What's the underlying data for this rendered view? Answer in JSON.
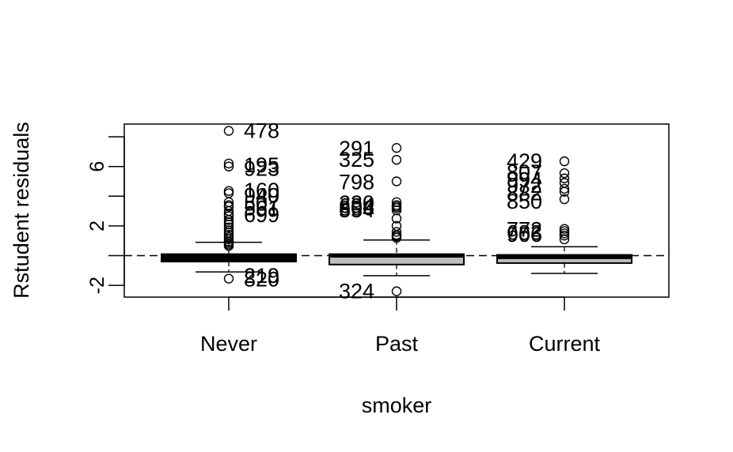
{
  "chart_data": {
    "type": "box",
    "xlabel": "smoker",
    "ylabel": "Rstudent residuals",
    "categories": [
      "Never",
      "Past",
      "Current"
    ],
    "ylim": [
      -2.9,
      8.7
    ],
    "yticks": [
      -2,
      0,
      2,
      4,
      6,
      8
    ],
    "ytick_labels": [
      "-2",
      "",
      "2",
      "",
      "6",
      ""
    ],
    "reference_line": {
      "y": 0,
      "style": "dashed"
    },
    "boxes": [
      {
        "category": "Never",
        "fill": "#000000",
        "median": 0.0,
        "q1": -0.4,
        "q3": 0.1,
        "whisker_low": -1.1,
        "whisker_high": 0.9,
        "outliers": [
          8.4,
          6.2,
          6.0,
          4.35,
          4.2,
          3.6,
          3.4,
          3.3,
          3.0,
          2.8,
          2.65,
          2.4,
          2.25,
          2.1,
          1.9,
          1.7,
          1.55,
          1.4,
          1.25,
          1.1,
          0.95,
          0.85,
          0.75,
          0.65,
          -1.55
        ],
        "labels": [
          {
            "text": "478",
            "y": 8.4
          },
          {
            "text": "195",
            "y": 6.1
          },
          {
            "text": "923",
            "y": 5.85
          },
          {
            "text": "160",
            "y": 4.4
          },
          {
            "text": "940",
            "y": 4.05
          },
          {
            "text": "507",
            "y": 3.5
          },
          {
            "text": "561",
            "y": 3.2
          },
          {
            "text": "699",
            "y": 2.75
          },
          {
            "text": "219",
            "y": -1.35
          },
          {
            "text": "820",
            "y": -1.6
          }
        ]
      },
      {
        "category": "Past",
        "fill": "#bebebe",
        "median": 0.0,
        "q1": -0.6,
        "q3": 0.1,
        "whisker_low": -1.35,
        "whisker_high": 1.05,
        "outliers": [
          7.25,
          6.45,
          5.0,
          3.6,
          3.4,
          3.3,
          3.2,
          3.05,
          2.5,
          2.0,
          1.6,
          1.4,
          1.3,
          1.2,
          -2.4
        ],
        "labels": [
          {
            "text": "291",
            "y": 7.2
          },
          {
            "text": "325",
            "y": 6.45
          },
          {
            "text": "798",
            "y": 4.95
          },
          {
            "text": "230",
            "y": 3.55
          },
          {
            "text": "694",
            "y": 3.35
          },
          {
            "text": "806",
            "y": 3.2
          },
          {
            "text": "554",
            "y": 3.05
          },
          {
            "text": "324",
            "y": -2.4
          }
        ]
      },
      {
        "category": "Current",
        "fill": "#bebebe",
        "median": -0.1,
        "q1": -0.5,
        "q3": 0.05,
        "whisker_low": -1.2,
        "whisker_high": 0.6,
        "outliers": [
          6.35,
          5.55,
          5.2,
          4.9,
          4.5,
          4.3,
          3.8,
          1.8,
          1.65,
          1.5,
          1.35,
          1.1
        ],
        "labels": [
          {
            "text": "429",
            "y": 6.35
          },
          {
            "text": "807",
            "y": 5.6
          },
          {
            "text": "994",
            "y": 5.1
          },
          {
            "text": "972",
            "y": 4.7
          },
          {
            "text": "882",
            "y": 4.2
          },
          {
            "text": "850",
            "y": 3.65
          },
          {
            "text": "772",
            "y": 1.75
          },
          {
            "text": "683",
            "y": 1.55
          },
          {
            "text": "906",
            "y": 1.4
          }
        ]
      }
    ]
  }
}
